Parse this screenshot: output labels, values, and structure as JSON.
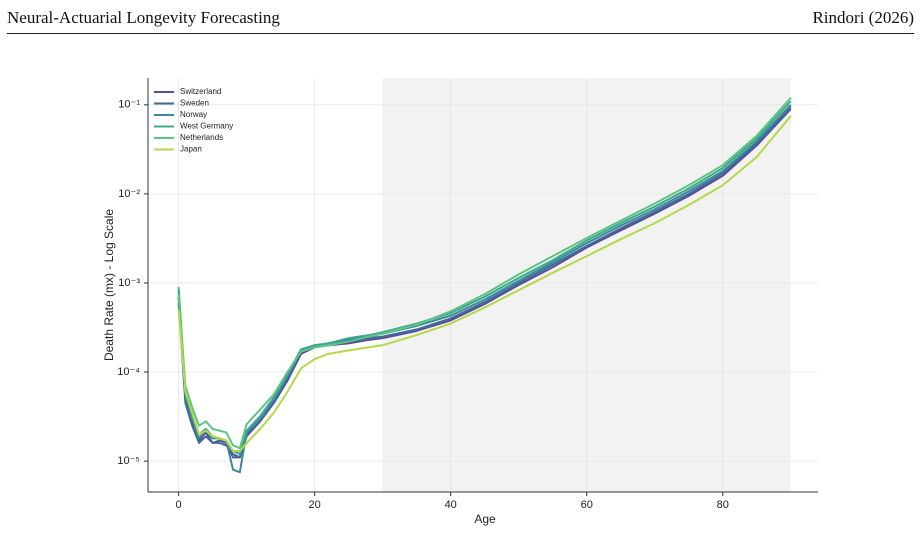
{
  "header": {
    "title": "Neural-Actuarial Longevity Forecasting",
    "author": "Rindori (2026)"
  },
  "chart_data": {
    "type": "line",
    "x_label": "Age",
    "y_label": "Death Rate (mx) - Log Scale",
    "log_y": true,
    "grid": true,
    "legend_position": "upper-left",
    "shaded_region": {
      "x": [
        30,
        90
      ],
      "color": "#f2f2f2"
    },
    "xlim": [
      -4.5,
      94
    ],
    "xticks": [
      0,
      20,
      40,
      60,
      80
    ],
    "ylim": [
      4.5e-06,
      0.2
    ],
    "yticks": [
      {
        "value": 1e-05,
        "label": "10⁻⁵"
      },
      {
        "value": 0.0001,
        "label": "10⁻⁴"
      },
      {
        "value": 0.001,
        "label": "10⁻³"
      },
      {
        "value": 0.01,
        "label": "10⁻²"
      },
      {
        "value": 0.1,
        "label": "10⁻¹"
      }
    ],
    "x": [
      0,
      1,
      2,
      3,
      4,
      5,
      6,
      7,
      8,
      9,
      10,
      12,
      14,
      16,
      18,
      20,
      22,
      25,
      28,
      30,
      35,
      40,
      45,
      50,
      55,
      60,
      65,
      70,
      75,
      80,
      85,
      90
    ],
    "series": [
      {
        "name": "Switzerland",
        "color": "#5a4f96",
        "values": [
          0.0007,
          5e-05,
          2.8e-05,
          1.7e-05,
          2.1e-05,
          1.6e-05,
          1.7e-05,
          1.6e-05,
          1.1e-05,
          1.1e-05,
          1.9e-05,
          2.8e-05,
          4.5e-05,
          8e-05,
          0.00016,
          0.00019,
          0.0002,
          0.00021,
          0.00023,
          0.00024,
          0.00029,
          0.00038,
          0.00058,
          0.00095,
          0.0015,
          0.0025,
          0.0039,
          0.006,
          0.0095,
          0.016,
          0.035,
          0.09
        ]
      },
      {
        "name": "Sweden",
        "color": "#3f6a9c",
        "values": [
          0.0006,
          4.5e-05,
          2.5e-05,
          1.6e-05,
          1.9e-05,
          1.6e-05,
          1.6e-05,
          1.5e-05,
          1.2e-05,
          1.1e-05,
          2e-05,
          2.9e-05,
          4.6e-05,
          8.5e-05,
          0.00017,
          0.00019,
          0.0002,
          0.00022,
          0.00024,
          0.00025,
          0.0003,
          0.0004,
          0.00061,
          0.001,
          0.0016,
          0.0026,
          0.0041,
          0.0063,
          0.01,
          0.017,
          0.037,
          0.095
        ]
      },
      {
        "name": "Norway",
        "color": "#3a8a9a",
        "values": [
          0.0008,
          5.5e-05,
          3e-05,
          1.8e-05,
          2.2e-05,
          1.8e-05,
          1.8e-05,
          1.7e-05,
          8e-06,
          7.5e-06,
          2.1e-05,
          3e-05,
          5e-05,
          9e-05,
          0.000175,
          0.0002,
          0.00021,
          0.00023,
          0.00025,
          0.00027,
          0.00033,
          0.00043,
          0.00065,
          0.00106,
          0.0017,
          0.0028,
          0.0044,
          0.0067,
          0.0107,
          0.018,
          0.039,
          0.1
        ]
      },
      {
        "name": "West Germany",
        "color": "#3aa88e",
        "values": [
          0.0009,
          6e-05,
          3.2e-05,
          2e-05,
          2.3e-05,
          1.9e-05,
          1.8e-05,
          1.7e-05,
          1.3e-05,
          1.2e-05,
          2.2e-05,
          3.2e-05,
          5.2e-05,
          9.5e-05,
          0.00018,
          0.0002,
          0.00021,
          0.00024,
          0.00026,
          0.00028,
          0.00035,
          0.00046,
          0.0007,
          0.00114,
          0.0018,
          0.003,
          0.0047,
          0.0072,
          0.0115,
          0.0195,
          0.042,
          0.11
        ]
      },
      {
        "name": "Netherlands",
        "color": "#5cc582",
        "values": [
          0.00075,
          7e-05,
          4e-05,
          2.5e-05,
          2.8e-05,
          2.3e-05,
          2.2e-05,
          2.1e-05,
          1.5e-05,
          1.4e-05,
          2.6e-05,
          3.8e-05,
          5.6e-05,
          0.0001,
          0.00017,
          0.00019,
          0.0002,
          0.00022,
          0.00025,
          0.00027,
          0.00034,
          0.00048,
          0.00075,
          0.00125,
          0.002,
          0.0032,
          0.005,
          0.0078,
          0.0125,
          0.021,
          0.045,
          0.12
        ]
      },
      {
        "name": "Japan",
        "color": "#b4d84a",
        "values": [
          0.0005,
          6e-05,
          3.5e-05,
          2e-05,
          2.2e-05,
          1.9e-05,
          1.8e-05,
          1.7e-05,
          1.3e-05,
          1.3e-05,
          1.6e-05,
          2.3e-05,
          3.5e-05,
          6e-05,
          0.00011,
          0.00014,
          0.00016,
          0.000175,
          0.00019,
          0.0002,
          0.00026,
          0.00035,
          0.00053,
          0.00083,
          0.0013,
          0.002,
          0.0031,
          0.0047,
          0.0075,
          0.0125,
          0.026,
          0.075
        ]
      }
    ]
  }
}
